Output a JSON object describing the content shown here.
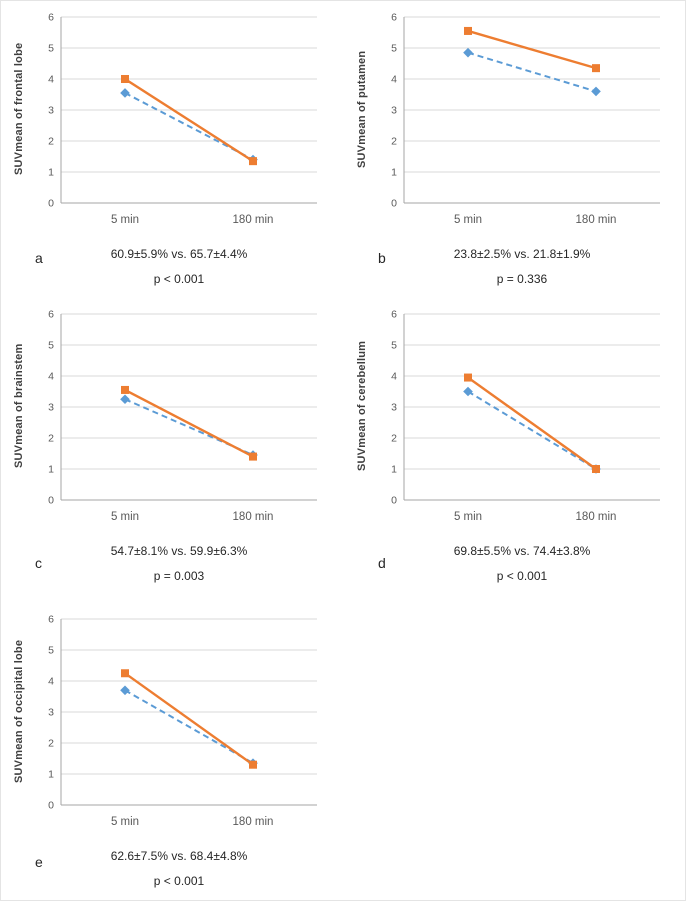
{
  "chart_data": [
    {
      "type": "line",
      "panel_label": "a",
      "ylabel": "SUVmean of frontal lobe",
      "categories": [
        "5 min",
        "180 min"
      ],
      "series": [
        {
          "name": "blue-dashed-diamond",
          "color": "#5B9BD5",
          "line_style": "dashed",
          "marker": "diamond",
          "values": [
            3.55,
            1.4
          ]
        },
        {
          "name": "orange-solid-square",
          "color": "#ED7D31",
          "line_style": "solid",
          "marker": "square",
          "values": [
            4.0,
            1.35
          ]
        }
      ],
      "ylim": [
        0,
        6
      ],
      "yticks": [
        0,
        1,
        2,
        3,
        4,
        5,
        6
      ],
      "grid": true,
      "legend": false,
      "annotations": [
        "60.9±5.9% vs. 65.7±4.4%",
        "p < 0.001"
      ]
    },
    {
      "type": "line",
      "panel_label": "b",
      "ylabel": "SUVmean of putamen",
      "categories": [
        "5 min",
        "180 min"
      ],
      "series": [
        {
          "name": "blue-dashed-diamond",
          "color": "#5B9BD5",
          "line_style": "dashed",
          "marker": "diamond",
          "values": [
            4.85,
            3.6
          ]
        },
        {
          "name": "orange-solid-square",
          "color": "#ED7D31",
          "line_style": "solid",
          "marker": "square",
          "values": [
            5.55,
            4.35
          ]
        }
      ],
      "ylim": [
        0,
        6
      ],
      "yticks": [
        0,
        1,
        2,
        3,
        4,
        5,
        6
      ],
      "grid": true,
      "legend": false,
      "annotations": [
        "23.8±2.5% vs. 21.8±1.9%",
        "p = 0.336"
      ]
    },
    {
      "type": "line",
      "panel_label": "c",
      "ylabel": "SUVmean of brainstem",
      "categories": [
        "5 min",
        "180 min"
      ],
      "series": [
        {
          "name": "blue-dashed-diamond",
          "color": "#5B9BD5",
          "line_style": "dashed",
          "marker": "diamond",
          "values": [
            3.25,
            1.45
          ]
        },
        {
          "name": "orange-solid-square",
          "color": "#ED7D31",
          "line_style": "solid",
          "marker": "square",
          "values": [
            3.55,
            1.4
          ]
        }
      ],
      "ylim": [
        0,
        6
      ],
      "yticks": [
        0,
        1,
        2,
        3,
        4,
        5,
        6
      ],
      "grid": true,
      "legend": false,
      "annotations": [
        "54.7±8.1% vs. 59.9±6.3%",
        "p = 0.003"
      ]
    },
    {
      "type": "line",
      "panel_label": "d",
      "ylabel": "SUVmean of cerebellum",
      "categories": [
        "5 min",
        "180 min"
      ],
      "series": [
        {
          "name": "blue-dashed-diamond",
          "color": "#5B9BD5",
          "line_style": "dashed",
          "marker": "diamond",
          "values": [
            3.5,
            1.0
          ]
        },
        {
          "name": "orange-solid-square",
          "color": "#ED7D31",
          "line_style": "solid",
          "marker": "square",
          "values": [
            3.95,
            1.0
          ]
        }
      ],
      "ylim": [
        0,
        6
      ],
      "yticks": [
        0,
        1,
        2,
        3,
        4,
        5,
        6
      ],
      "grid": true,
      "legend": false,
      "annotations": [
        "69.8±5.5% vs. 74.4±3.8%",
        "p < 0.001"
      ]
    },
    {
      "type": "line",
      "panel_label": "e",
      "ylabel": "SUVmean of occipital lobe",
      "categories": [
        "5 min",
        "180 min"
      ],
      "series": [
        {
          "name": "blue-dashed-diamond",
          "color": "#5B9BD5",
          "line_style": "dashed",
          "marker": "diamond",
          "values": [
            3.7,
            1.35
          ]
        },
        {
          "name": "orange-solid-square",
          "color": "#ED7D31",
          "line_style": "solid",
          "marker": "square",
          "values": [
            4.25,
            1.3
          ]
        }
      ],
      "ylim": [
        0,
        6
      ],
      "yticks": [
        0,
        1,
        2,
        3,
        4,
        5,
        6
      ],
      "grid": true,
      "legend": false,
      "annotations": [
        "62.6±7.5% vs. 68.4±4.8%",
        "p < 0.001"
      ]
    }
  ]
}
